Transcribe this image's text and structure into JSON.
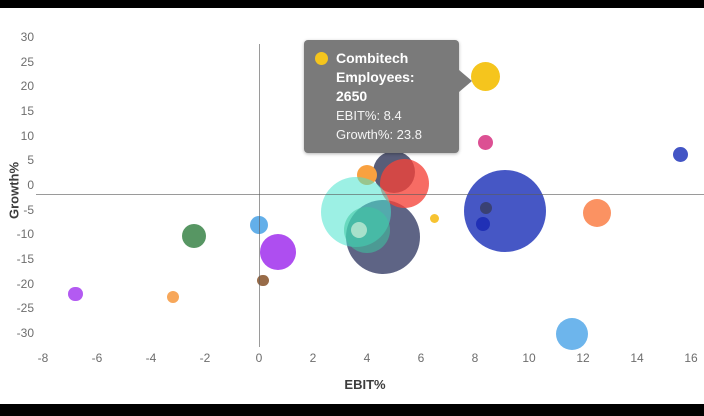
{
  "frame": {
    "background": "#ffffff",
    "letterbox_color": "#000000"
  },
  "chart_data": {
    "type": "scatter",
    "variant": "bubble",
    "title": "",
    "xlabel": "EBIT%",
    "ylabel": "Growth%",
    "xlim": [
      -8.5,
      16.5
    ],
    "ylim": [
      -31,
      31
    ],
    "x_ticks": [
      -8,
      -6,
      -4,
      -2,
      0,
      2,
      4,
      6,
      8,
      10,
      12,
      14,
      16
    ],
    "y_ticks": [
      30,
      25,
      20,
      15,
      10,
      5,
      0,
      -5,
      -10,
      -15,
      -20,
      -25,
      -30
    ],
    "grid": false,
    "zero_axis_lines": true,
    "legend": "none",
    "points": [
      {
        "id": "slate-large-bubble",
        "x": 4.6,
        "y": -8.7,
        "r": 37,
        "color": "#575E80",
        "alpha": 0.96
      },
      {
        "id": "navy-top-bubble",
        "x": 5.0,
        "y": 4.5,
        "r": 21,
        "color": "#4A4F6D",
        "alpha": 0.92
      },
      {
        "id": "orange-cluster-bubble",
        "x": 4.0,
        "y": 3.9,
        "r": 10,
        "color": "#F9A140",
        "alpha": 1
      },
      {
        "id": "red-cluster-bubble",
        "x": 5.4,
        "y": 2.2,
        "r": 24.5,
        "color": "#F54238",
        "alpha": 0.78
      },
      {
        "id": "turquoise-large-bubble",
        "x": 3.6,
        "y": -3.7,
        "r": 35,
        "color": "#4BE4CE",
        "alpha": 0.55
      },
      {
        "id": "teal-medium-bubble",
        "x": 4.0,
        "y": -7.3,
        "r": 23,
        "color": "#3EC6A0",
        "alpha": 0.55
      },
      {
        "id": "pale-aqua-small-bubble",
        "x": 3.7,
        "y": -7.3,
        "r": 8,
        "color": "#B9E7D1",
        "alpha": 0.85
      },
      {
        "id": "green-left-bubble",
        "x": -2.4,
        "y": -8.5,
        "r": 12,
        "color": "#579663",
        "alpha": 1
      },
      {
        "id": "violet-small-left-bubble",
        "x": -6.8,
        "y": -20.3,
        "r": 7.3,
        "color": "#B35AF2",
        "alpha": 1
      },
      {
        "id": "orange-small-left-bubble",
        "x": -3.2,
        "y": -20.9,
        "r": 6,
        "color": "#F7A75A",
        "alpha": 1
      },
      {
        "id": "lightblue-axis-bubble",
        "x": 0.0,
        "y": -6.3,
        "r": 9,
        "color": "#63AFE9",
        "alpha": 1
      },
      {
        "id": "purple-large-bubble",
        "x": 0.7,
        "y": -11.8,
        "r": 18.3,
        "color": "#AE4EF0",
        "alpha": 1
      },
      {
        "id": "brown-small-bubble",
        "x": 0.15,
        "y": -17.6,
        "r": 5.7,
        "color": "#986B48",
        "alpha": 1
      },
      {
        "id": "royalblue-large-bubble",
        "x": 9.1,
        "y": -3.4,
        "r": 41,
        "color": "#3E50C3",
        "alpha": 0.96
      },
      {
        "id": "darkslate-dot-bubble",
        "x": 8.4,
        "y": -2.8,
        "r": 6,
        "color": "#3A4173",
        "alpha": 1
      },
      {
        "id": "darkblue-dot-bubble",
        "x": 8.3,
        "y": -6.1,
        "r": 7,
        "color": "#2030B6",
        "alpha": 1
      },
      {
        "id": "coral-right-bubble",
        "x": 12.5,
        "y": -3.9,
        "r": 14,
        "color": "#FB9262",
        "alpha": 1
      },
      {
        "id": "navyblue-right-bubble",
        "x": 15.6,
        "y": 8.1,
        "r": 7.5,
        "color": "#4355C5",
        "alpha": 1
      },
      {
        "id": "lightblue-bottom-bubble",
        "x": 11.6,
        "y": -28.4,
        "r": 16,
        "color": "#6DB5EC",
        "alpha": 1
      },
      {
        "id": "pink-right-bubble",
        "x": 8.4,
        "y": 10.5,
        "r": 7.5,
        "color": "#DC5093",
        "alpha": 1
      },
      {
        "id": "yellow-small-mid-bubble",
        "x": 6.5,
        "y": -4.9,
        "r": 4.5,
        "color": "#F7C331",
        "alpha": 1
      },
      {
        "id": "combitech-bubble",
        "name": "Combitech",
        "employees": 2650,
        "x": 8.4,
        "y": 23.8,
        "r": 14.5,
        "color": "#F5C51D",
        "alpha": 1
      }
    ]
  },
  "tooltip": {
    "title": "Combitech",
    "employees_line": "Employees: 2650",
    "ebit_line": "EBIT%: 8.4",
    "growth_line": "Growth%: 23.8",
    "bg_color": "#7A7A7A",
    "text_color": "#FFFFFF",
    "marker_color": "#F5C51D"
  }
}
